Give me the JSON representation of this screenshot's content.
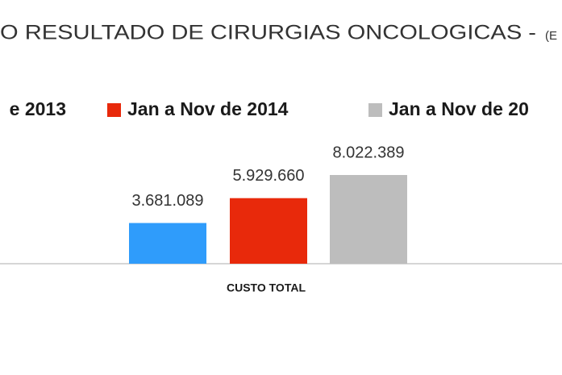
{
  "chart_data": {
    "type": "bar",
    "title": "O RESULTADO DE CIRURGIAS ONCOLOGICAS -",
    "subtitle": "(E",
    "categories": [
      "CUSTO TOTAL"
    ],
    "series": [
      {
        "name": "e 2013",
        "color": "#2f9cfb",
        "values": [
          3681089
        ],
        "value_labels": [
          "3.681.089"
        ]
      },
      {
        "name": "Jan a Nov de 2014",
        "color": "#e8290b",
        "values": [
          5929660
        ],
        "value_labels": [
          "5.929.660"
        ]
      },
      {
        "name": "Jan a Nov de 20",
        "color": "#bdbdbd",
        "values": [
          8022389
        ],
        "value_labels": [
          "8.022.389"
        ]
      }
    ]
  }
}
